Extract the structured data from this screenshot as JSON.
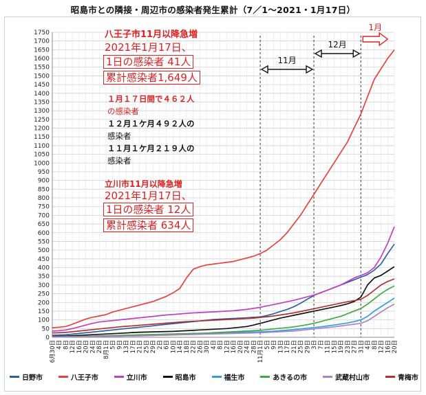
{
  "chart_data": {
    "type": "line",
    "title": "昭島市との隣接・周辺市の感染者発生累計（7／1～2021・1月17日）",
    "ylim": [
      0,
      1750
    ],
    "yticks": [
      0,
      50,
      100,
      150,
      200,
      250,
      300,
      350,
      400,
      450,
      500,
      550,
      600,
      650,
      700,
      750,
      800,
      850,
      900,
      950,
      1000,
      1050,
      1100,
      1150,
      1200,
      1250,
      1300,
      1350,
      1400,
      1450,
      1500,
      1550,
      1600,
      1650,
      1700,
      1750
    ],
    "x": [
      "6月30日",
      "4日",
      "8日",
      "12日",
      "16日",
      "20日",
      "24日",
      "28日",
      "8月1日",
      "5日",
      "9日",
      "13日",
      "17日",
      "21日",
      "25日",
      "29日",
      "2日",
      "6日",
      "10日",
      "14日",
      "18日",
      "22日",
      "26日",
      "30日",
      "4日",
      "8日",
      "12日",
      "16日",
      "20日",
      "24日",
      "28日",
      "11月1日",
      "5日",
      "9日",
      "13日",
      "17日",
      "21日",
      "25日",
      "29日",
      "3日",
      "7日",
      "11日",
      "15日",
      "19日",
      "23日",
      "27日",
      "31日",
      "4日",
      "8日",
      "12日",
      "16日",
      "20日"
    ],
    "series": [
      {
        "name": "日野市",
        "color": "#2a5ea8",
        "values": [
          12,
          13,
          14,
          18,
          22,
          26,
          30,
          34,
          38,
          42,
          46,
          50,
          54,
          58,
          62,
          66,
          70,
          74,
          78,
          82,
          86,
          90,
          94,
          98,
          102,
          104,
          106,
          108,
          110,
          112,
          115,
          117,
          125,
          135,
          148,
          160,
          175,
          195,
          218,
          240,
          256,
          270,
          285,
          300,
          315,
          330,
          345,
          360,
          385,
          420,
          480,
          535
        ]
      },
      {
        "name": "八王子市",
        "color": "#e8413a",
        "values": [
          55,
          58,
          62,
          75,
          90,
          105,
          115,
          122,
          130,
          145,
          155,
          165,
          175,
          185,
          195,
          205,
          220,
          235,
          255,
          280,
          340,
          390,
          405,
          415,
          420,
          425,
          430,
          435,
          445,
          455,
          465,
          480,
          500,
          530,
          560,
          600,
          650,
          700,
          760,
          820,
          880,
          940,
          1000,
          1060,
          1120,
          1200,
          1280,
          1380,
          1480,
          1540,
          1600,
          1649
        ]
      },
      {
        "name": "立川市",
        "color": "#c040c0",
        "values": [
          35,
          38,
          42,
          50,
          60,
          70,
          80,
          88,
          92,
          96,
          100,
          104,
          108,
          112,
          116,
          120,
          124,
          128,
          131,
          134,
          137,
          140,
          142,
          144,
          146,
          148,
          150,
          152,
          156,
          160,
          166,
          172,
          180,
          188,
          196,
          204,
          212,
          222,
          232,
          242,
          255,
          270,
          285,
          300,
          320,
          340,
          355,
          370,
          400,
          460,
          540,
          634
        ]
      },
      {
        "name": "昭島市",
        "color": "#111111",
        "values": [
          5,
          6,
          7,
          9,
          11,
          13,
          15,
          17,
          19,
          21,
          23,
          25,
          27,
          29,
          30,
          31,
          32,
          33,
          34,
          36,
          38,
          40,
          42,
          44,
          46,
          48,
          50,
          54,
          58,
          62,
          70,
          80,
          90,
          100,
          110,
          118,
          126,
          134,
          142,
          150,
          158,
          166,
          174,
          182,
          192,
          205,
          230,
          300,
          340,
          355,
          380,
          405
        ]
      },
      {
        "name": "福生市",
        "color": "#2ca0d8",
        "values": [
          2,
          2,
          3,
          3,
          4,
          5,
          6,
          7,
          8,
          9,
          10,
          11,
          12,
          13,
          14,
          15,
          16,
          17,
          18,
          19,
          20,
          21,
          22,
          23,
          24,
          25,
          26,
          27,
          28,
          29,
          30,
          31,
          33,
          35,
          38,
          41,
          44,
          48,
          52,
          56,
          60,
          65,
          70,
          76,
          82,
          90,
          100,
          120,
          150,
          175,
          200,
          225
        ]
      },
      {
        "name": "あきるの市",
        "color": "#3faa3f",
        "values": [
          3,
          3,
          4,
          4,
          5,
          6,
          7,
          8,
          9,
          10,
          11,
          12,
          13,
          14,
          15,
          16,
          17,
          18,
          19,
          20,
          21,
          22,
          23,
          24,
          26,
          28,
          30,
          32,
          34,
          36,
          38,
          40,
          44,
          48,
          52,
          56,
          60,
          66,
          72,
          80,
          90,
          100,
          110,
          120,
          135,
          150,
          165,
          190,
          220,
          250,
          275,
          295
        ]
      },
      {
        "name": "武蔵村山市",
        "color": "#b080d0",
        "values": [
          2,
          2,
          2,
          3,
          3,
          4,
          4,
          5,
          5,
          6,
          6,
          7,
          7,
          8,
          9,
          10,
          11,
          12,
          13,
          14,
          15,
          16,
          17,
          18,
          19,
          20,
          21,
          22,
          23,
          24,
          25,
          26,
          28,
          30,
          32,
          34,
          36,
          40,
          44,
          48,
          52,
          56,
          60,
          65,
          70,
          75,
          80,
          95,
          120,
          145,
          170,
          190
        ]
      },
      {
        "name": "青梅市",
        "color": "#b03030",
        "values": [
          25,
          26,
          28,
          32,
          36,
          40,
          44,
          48,
          52,
          56,
          60,
          63,
          66,
          69,
          72,
          75,
          78,
          81,
          84,
          87,
          90,
          92,
          94,
          96,
          98,
          100,
          102,
          104,
          106,
          108,
          110,
          114,
          118,
          122,
          128,
          134,
          140,
          148,
          156,
          164,
          172,
          180,
          188,
          196,
          204,
          210,
          218,
          240,
          270,
          300,
          320,
          335
        ]
      }
    ],
    "annotations": {
      "nov": "11月",
      "dec": "12月",
      "jan": "1月",
      "hachioji": [
        "八王子市11月以降急増",
        "2021年1月17日、",
        "1日の感染者 41人",
        "累計感染者1,649人"
      ],
      "note": [
        "１月１７日間で４６２人",
        "の感染者",
        "１２月１ケ月４９２人の",
        "感染者",
        "１１月１ケ月２１９人の",
        "感染者"
      ],
      "tachikawa": [
        "立川市11月以降急増",
        "2021年1月17日、",
        "1日の感染者 12人",
        "累計感染者  634人"
      ]
    }
  }
}
